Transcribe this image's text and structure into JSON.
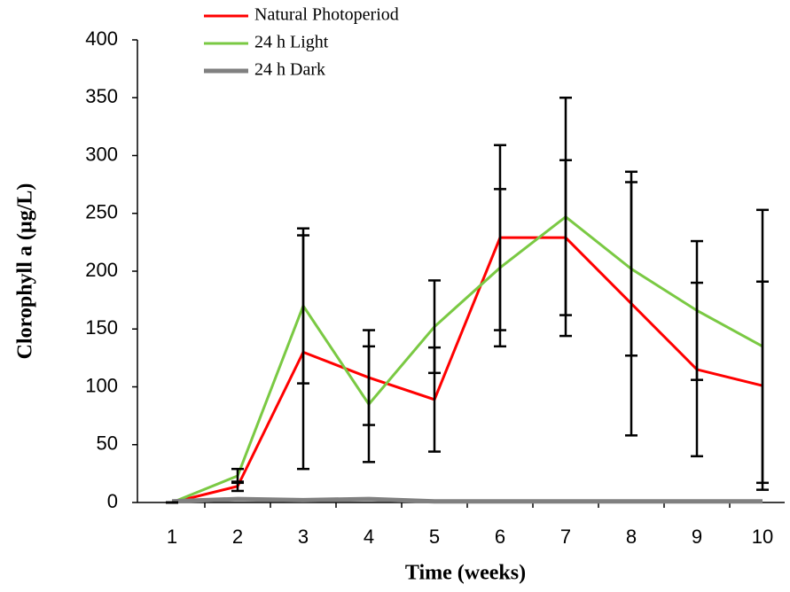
{
  "chart_data": {
    "type": "line",
    "x_label": "Time (weeks)",
    "y_label": "Clorophyll a (µg/L)",
    "categories": [
      "1",
      "2",
      "3",
      "4",
      "5",
      "6",
      "7",
      "8",
      "9",
      "10"
    ],
    "ylim": [
      0,
      400
    ],
    "yticks": [
      0,
      50,
      100,
      150,
      200,
      250,
      300,
      350,
      400
    ],
    "grid": false,
    "legend": "top",
    "series": [
      {
        "name": "Natural Photoperiod",
        "color": "#ff0000",
        "values": [
          0,
          14,
          130,
          108,
          89,
          229,
          229,
          172,
          115,
          101
        ],
        "errors": [
          0,
          4,
          101,
          41,
          45,
          80,
          67,
          114,
          75,
          90
        ]
      },
      {
        "name": "24 h Light",
        "color": "#7ac943",
        "values": [
          0,
          23,
          170,
          85,
          152,
          203,
          247,
          202,
          166,
          135
        ],
        "errors": [
          0,
          6,
          67,
          50,
          40,
          68,
          103,
          75,
          60,
          118
        ]
      },
      {
        "name": "24 h Dark",
        "color": "#808080",
        "values": [
          1,
          3,
          2,
          3,
          1,
          1,
          1,
          1,
          1,
          1
        ]
      }
    ]
  }
}
